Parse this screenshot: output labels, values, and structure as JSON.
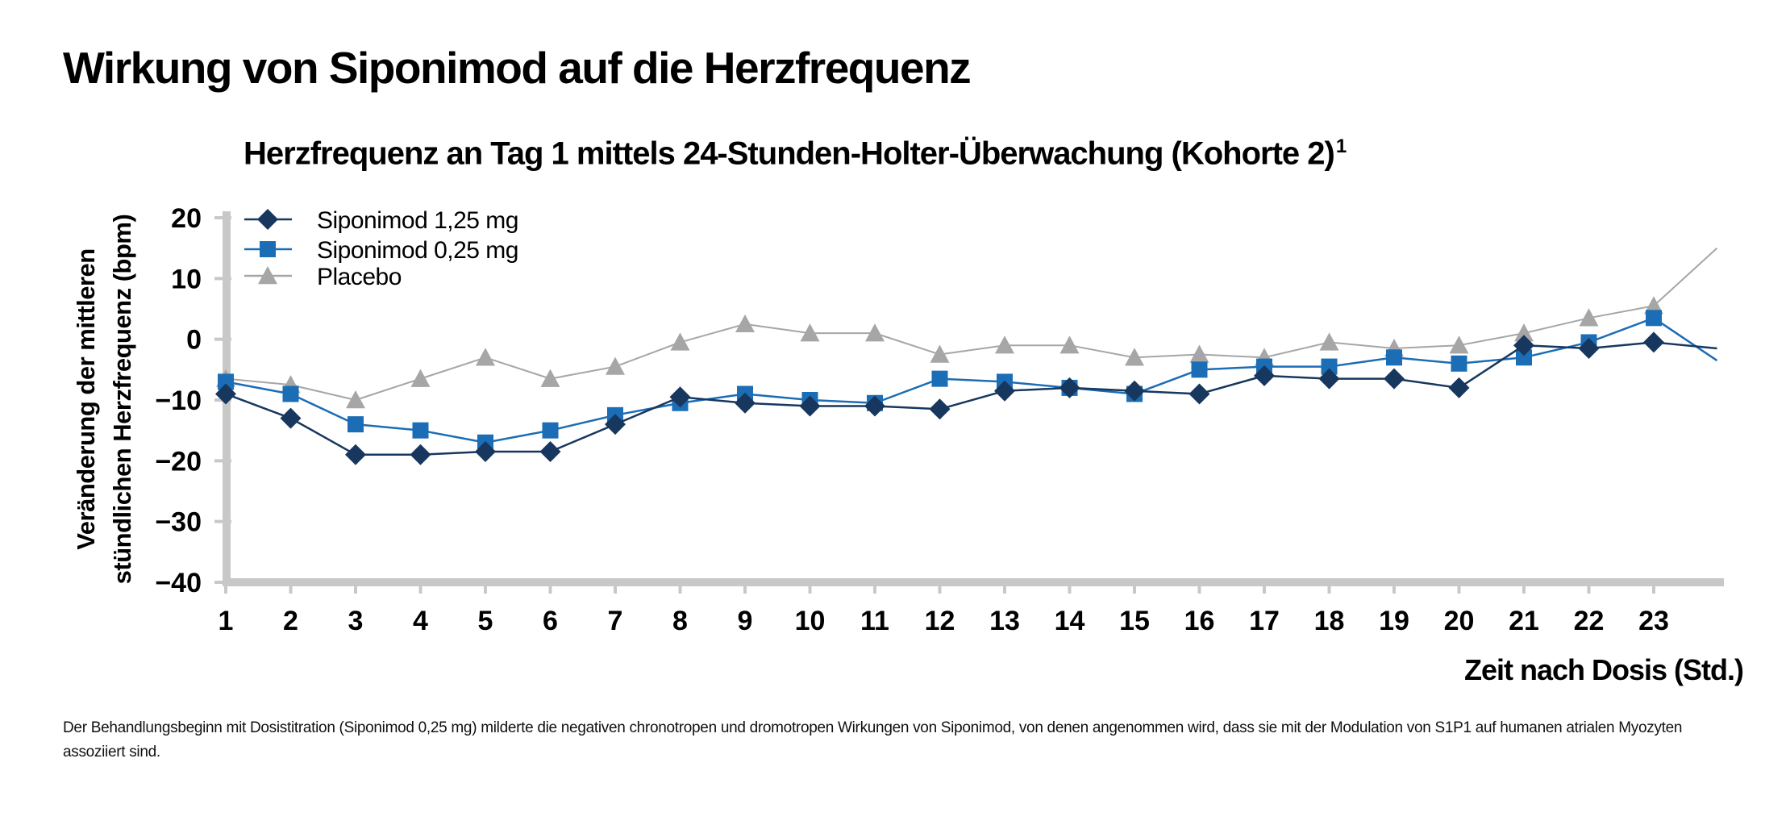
{
  "header": {
    "title": "Wirkung von Siponimod auf die Herzfrequenz"
  },
  "chart_title": {
    "text": "Herzfrequenz an Tag 1 mittels 24-Stunden-Holter-Überwachung (Kohorte 2)",
    "superscript": "1"
  },
  "footnote": "Der Behandlungsbeginn mit Dosistitration (Siponimod 0,25 mg) milderte die negativen chronotropen und dromotropen Wirkungen von Siponimod, von denen angenommen wird, dass sie mit der Modulation von S1P1 auf humanen atrialen Myozyten assoziiert sind.",
  "colors": {
    "siponimod_125": "#17375e",
    "siponimod_025": "#1b6db5",
    "placebo": "#a6a6a6",
    "axis": "#c8c8c8"
  },
  "chart_data": {
    "type": "line",
    "title": "Herzfrequenz an Tag 1 mittels 24-Stunden-Holter-Überwachung (Kohorte 2)",
    "xlabel": "Zeit nach Dosis (Std.)",
    "ylabel_lines": [
      "Veränderung der mittleren",
      "stündlichen Herzfrequenz (bpm)"
    ],
    "x": [
      1,
      2,
      3,
      4,
      5,
      6,
      7,
      8,
      9,
      10,
      11,
      12,
      13,
      14,
      15,
      16,
      17,
      18,
      19,
      20,
      21,
      22,
      23
    ],
    "x_tick_labels": [
      "1",
      "2",
      "3",
      "4",
      "5",
      "6",
      "7",
      "8",
      "9",
      "10",
      "11",
      "12",
      "13",
      "14",
      "15",
      "16",
      "17",
      "18",
      "19",
      "20",
      "21",
      "22",
      "23"
    ],
    "y_ticks": [
      20,
      10,
      0,
      -10,
      -20,
      -30,
      -40
    ],
    "y_tick_labels": [
      "20",
      "10",
      "0",
      "−10",
      "−20",
      "−30",
      "−40"
    ],
    "xlim": [
      1,
      24
    ],
    "ylim": [
      -40,
      20
    ],
    "grid": false,
    "legend_position": "top-left",
    "series": [
      {
        "name": "Siponimod 1,25 mg",
        "marker": "diamond",
        "values": [
          -9,
          -13,
          -19,
          -19,
          -18.5,
          -18.5,
          -14,
          -9.5,
          -10.5,
          -11,
          -11,
          -11.5,
          -8.5,
          -8,
          -8.5,
          -9,
          -6,
          -6.5,
          -6.5,
          -8,
          -1,
          -1.5,
          -0.5
        ],
        "tail_value": -1.5
      },
      {
        "name": "Siponimod 0,25 mg",
        "marker": "square",
        "values": [
          -7,
          -9,
          -14,
          -15,
          -17,
          -15,
          -12.5,
          -10.5,
          -9,
          -10,
          -10.5,
          -6.5,
          -7,
          -8,
          -9,
          -5,
          -4.5,
          -4.5,
          -3,
          -4,
          -3,
          -0.5,
          3.5
        ],
        "tail_value": -3.5
      },
      {
        "name": "Placebo",
        "marker": "triangle",
        "values": [
          -6.5,
          -7.5,
          -10,
          -6.5,
          -3,
          -6.5,
          -4.5,
          -0.5,
          2.5,
          1,
          1,
          -2.5,
          -1,
          -1,
          -3,
          -2.5,
          -3,
          -0.5,
          -1.5,
          -1,
          1,
          3.5,
          5.5
        ],
        "tail_value": 15
      }
    ]
  }
}
